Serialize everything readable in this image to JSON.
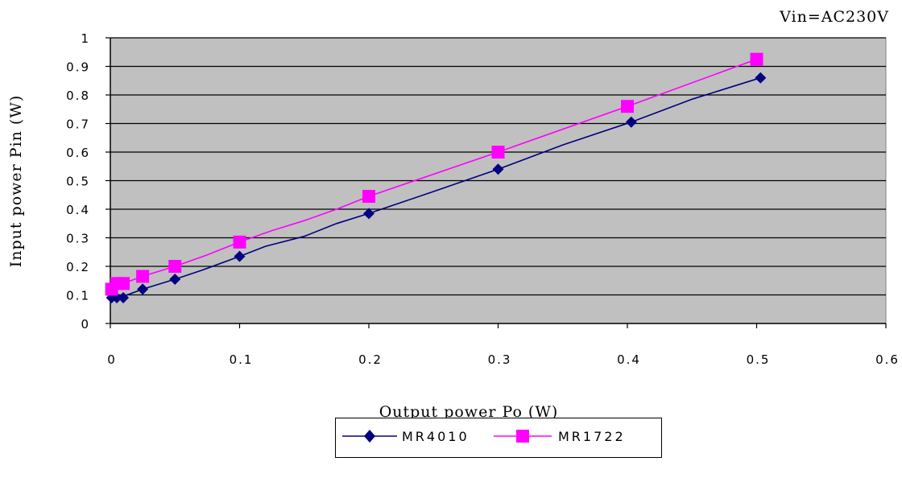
{
  "note": "Vin=AC230V",
  "chart_data": {
    "type": "line",
    "xlabel": "Output power Po (W)",
    "ylabel": "Input power Pin (W)",
    "xlim": [
      0,
      0.6
    ],
    "ylim": [
      0,
      1
    ],
    "x_ticks": [
      "0",
      "0.1",
      "0.2",
      "0.3",
      "0.4",
      "0.5",
      "0.6"
    ],
    "y_ticks": [
      "0",
      "0.1",
      "0.2",
      "0.3",
      "0.4",
      "0.5",
      "0.6",
      "0.7",
      "0.8",
      "0.9",
      "1"
    ],
    "grid": "horizontal",
    "plot_background": "#c0c0c0",
    "legend_position": "bottom",
    "series": [
      {
        "name": "MR4010",
        "color": "#000080",
        "marker": "diamond",
        "points": [
          [
            0.001,
            0.09
          ],
          [
            0.005,
            0.09
          ],
          [
            0.01,
            0.09
          ],
          [
            0.025,
            0.12
          ],
          [
            0.05,
            0.155
          ],
          [
            0.1,
            0.235
          ],
          [
            0.2,
            0.385
          ],
          [
            0.3,
            0.54
          ],
          [
            0.403,
            0.705
          ],
          [
            0.503,
            0.86
          ]
        ],
        "line": [
          [
            0.001,
            0.09
          ],
          [
            0.005,
            0.09
          ],
          [
            0.01,
            0.095
          ],
          [
            0.025,
            0.12
          ],
          [
            0.05,
            0.155
          ],
          [
            0.07,
            0.185
          ],
          [
            0.1,
            0.235
          ],
          [
            0.12,
            0.27
          ],
          [
            0.15,
            0.305
          ],
          [
            0.175,
            0.35
          ],
          [
            0.2,
            0.385
          ],
          [
            0.25,
            0.462
          ],
          [
            0.3,
            0.54
          ],
          [
            0.35,
            0.625
          ],
          [
            0.403,
            0.705
          ],
          [
            0.45,
            0.785
          ],
          [
            0.503,
            0.86
          ]
        ]
      },
      {
        "name": "MR1722",
        "color": "#ff00ff",
        "marker": "square",
        "points": [
          [
            0.001,
            0.12
          ],
          [
            0.005,
            0.14
          ],
          [
            0.01,
            0.14
          ],
          [
            0.025,
            0.165
          ],
          [
            0.05,
            0.2
          ],
          [
            0.1,
            0.285
          ],
          [
            0.2,
            0.445
          ],
          [
            0.3,
            0.6
          ],
          [
            0.4,
            0.76
          ],
          [
            0.5,
            0.925
          ]
        ],
        "line": [
          [
            0.001,
            0.12
          ],
          [
            0.005,
            0.14
          ],
          [
            0.01,
            0.14
          ],
          [
            0.025,
            0.165
          ],
          [
            0.05,
            0.2
          ],
          [
            0.075,
            0.24
          ],
          [
            0.1,
            0.285
          ],
          [
            0.125,
            0.325
          ],
          [
            0.15,
            0.36
          ],
          [
            0.175,
            0.4
          ],
          [
            0.2,
            0.445
          ],
          [
            0.3,
            0.6
          ],
          [
            0.4,
            0.76
          ],
          [
            0.5,
            0.925
          ]
        ]
      }
    ]
  }
}
